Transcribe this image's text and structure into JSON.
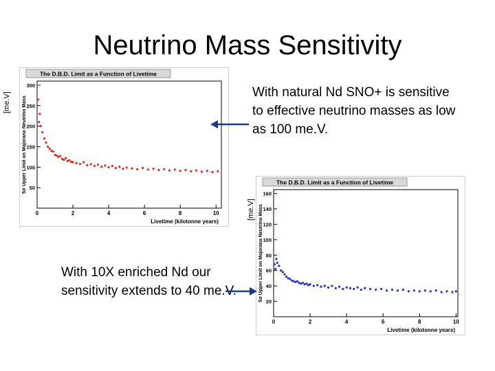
{
  "slide": {
    "title": "Neutrino Mass Sensitivity",
    "callout_top": "With natural Nd SNO+ is sensitive to effective neutrino masses as low as 100 me.V.",
    "callout_bottom": "With 10X enriched Nd our sensitivity extends to 40 me.V.",
    "unit_top": "[me.V]",
    "unit_bottom": "[me.V]"
  },
  "colors": {
    "series_top": "#e8281e",
    "series_bottom": "#2030d8",
    "frame_header": "#d8d8d8"
  },
  "chart_data": [
    {
      "type": "scatter",
      "title": "The D.B.D. Limit as a Function of Livetime",
      "xlabel": "Livetime (kilotonne years)",
      "ylabel": "5σ Upper Limit on Majorana Neutrino Mass",
      "xlim": [
        0,
        10.3
      ],
      "ylim": [
        0,
        310
      ],
      "xticks": [
        0,
        2,
        4,
        6,
        8,
        10
      ],
      "yticks": [
        50,
        100,
        150,
        200,
        250,
        300
      ],
      "grid": false,
      "series": [
        {
          "color": "#e8281e",
          "x": [
            0.05,
            0.1,
            0.15,
            0.2,
            0.3,
            0.4,
            0.5,
            0.6,
            0.7,
            0.8,
            0.9,
            1.0,
            1.1,
            1.2,
            1.3,
            1.4,
            1.5,
            1.6,
            1.7,
            1.8,
            1.9,
            2.0,
            2.2,
            2.4,
            2.6,
            2.8,
            3.0,
            3.2,
            3.4,
            3.6,
            3.8,
            4.0,
            4.2,
            4.4,
            4.6,
            4.8,
            5.0,
            5.3,
            5.6,
            5.9,
            6.2,
            6.5,
            6.8,
            7.1,
            7.4,
            7.7,
            8.0,
            8.3,
            8.6,
            8.9,
            9.2,
            9.5,
            9.8,
            10.1
          ],
          "y": [
            265,
            210,
            230,
            200,
            185,
            170,
            160,
            150,
            145,
            140,
            138,
            130,
            128,
            125,
            127,
            120,
            118,
            122,
            115,
            117,
            113,
            112,
            110,
            108,
            112,
            105,
            107,
            103,
            106,
            101,
            104,
            100,
            103,
            98,
            101,
            96,
            99,
            97,
            95,
            98,
            94,
            96,
            93,
            95,
            92,
            94,
            91,
            93,
            90,
            92,
            89,
            91,
            88,
            90
          ]
        }
      ]
    },
    {
      "type": "scatter",
      "title": "The D.B.D. Limit as a Function of Livetime",
      "xlabel": "Livetime (kilotonne years)",
      "ylabel": "5σ Upper Limit on Majorana Neutrino Mass",
      "xlim": [
        0,
        10.1
      ],
      "ylim": [
        0,
        165
      ],
      "xticks": [
        0,
        2,
        4,
        6,
        8,
        10
      ],
      "yticks": [
        20,
        40,
        60,
        80,
        100,
        120,
        140,
        160
      ],
      "grid": false,
      "series": [
        {
          "color": "#2030d8",
          "x": [
            0.05,
            0.1,
            0.15,
            0.2,
            0.3,
            0.4,
            0.5,
            0.6,
            0.7,
            0.8,
            0.9,
            1.0,
            1.1,
            1.2,
            1.3,
            1.4,
            1.5,
            1.6,
            1.7,
            1.8,
            1.9,
            2.0,
            2.2,
            2.4,
            2.6,
            2.8,
            3.0,
            3.2,
            3.4,
            3.6,
            3.8,
            4.0,
            4.2,
            4.4,
            4.6,
            4.8,
            5.0,
            5.3,
            5.6,
            5.9,
            6.2,
            6.5,
            6.8,
            7.1,
            7.4,
            7.7,
            8.0,
            8.3,
            8.6,
            8.9,
            9.2,
            9.5,
            9.8,
            10.0
          ],
          "y": [
            68,
            62,
            75,
            70,
            66,
            60,
            58,
            55,
            52,
            50,
            49,
            47,
            46,
            45,
            46,
            44,
            43,
            44,
            42,
            43,
            41,
            42,
            40,
            41,
            39,
            40,
            38,
            40,
            37,
            39,
            36,
            38,
            37,
            36,
            38,
            35,
            37,
            36,
            35,
            36,
            34,
            35,
            34,
            35,
            33,
            34,
            33,
            34,
            33,
            34,
            32,
            33,
            32,
            33
          ]
        }
      ]
    }
  ]
}
